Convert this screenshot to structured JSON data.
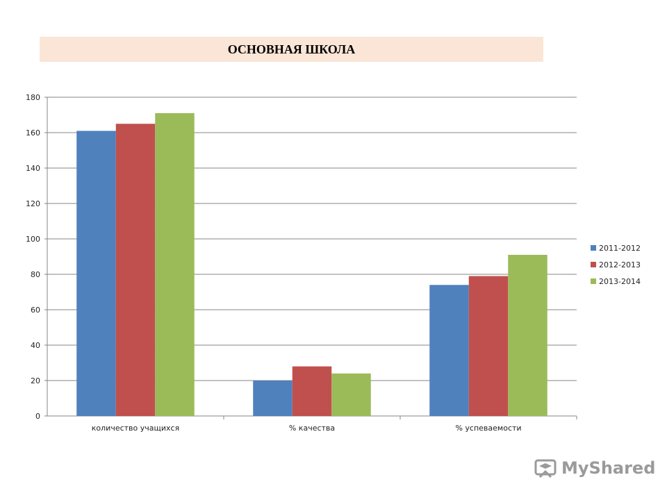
{
  "title": "ОСНОВНАЯ ШКОЛА",
  "colors": {
    "series": [
      "#4f81bd",
      "#c0504d",
      "#9bbb59"
    ],
    "grid": "#868686",
    "banner": "#fbe5d6"
  },
  "chart_data": {
    "type": "bar",
    "categories": [
      "количество учащихся",
      "% качества",
      "% успеваемости"
    ],
    "series": [
      {
        "name": "2011-2012",
        "values": [
          161,
          20,
          74
        ]
      },
      {
        "name": "2012-2013",
        "values": [
          165,
          28,
          79
        ]
      },
      {
        "name": "2013-2014",
        "values": [
          171,
          24,
          91
        ]
      }
    ],
    "ylim": [
      0,
      180
    ],
    "yticks": [
      0,
      20,
      40,
      60,
      80,
      100,
      120,
      140,
      160,
      180
    ],
    "grid": true,
    "legend_position": "right"
  },
  "watermark": {
    "text": "MyShared",
    "icon": "mortarboard-icon"
  }
}
